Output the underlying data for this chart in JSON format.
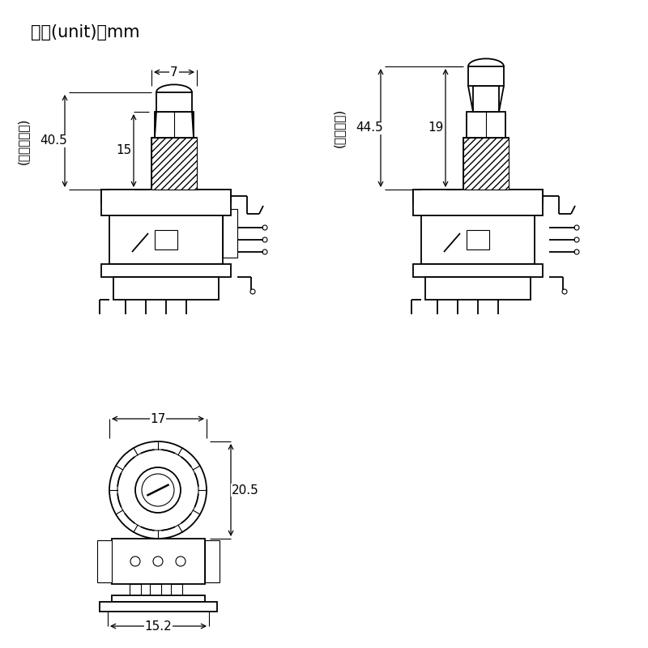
{
  "title": "单位(unit)：mm",
  "bg_color": "#ffffff",
  "line_color": "#000000",
  "dim1_label": "7",
  "dim2_label": "15",
  "dim3_label": "40.5",
  "dim4_label": "19",
  "dim5_label": "44.5",
  "dim6_label": "17",
  "dim7_label": "20.5",
  "dim8_label": "15.2",
  "label_left1": "(开关未拉起)",
  "label_left2": "(开关拉起)",
  "font_size_title": 15,
  "font_size_dim": 11,
  "font_size_label": 11
}
